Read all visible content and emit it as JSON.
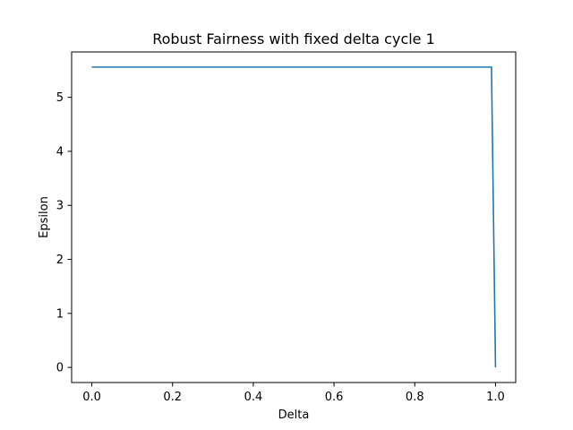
{
  "chart_data": {
    "type": "line",
    "title": "Robust Fairness with fixed delta cycle 1",
    "xlabel": "Delta",
    "ylabel": "Epsilon",
    "xlim": [
      -0.05,
      1.05
    ],
    "ylim": [
      -0.28,
      5.84
    ],
    "x_ticks": [
      0.0,
      0.2,
      0.4,
      0.6,
      0.8,
      1.0
    ],
    "x_tick_labels": [
      "0.0",
      "0.2",
      "0.4",
      "0.6",
      "0.8",
      "1.0"
    ],
    "y_ticks": [
      0,
      1,
      2,
      3,
      4,
      5
    ],
    "y_tick_labels": [
      "0",
      "1",
      "2",
      "3",
      "4",
      "5"
    ],
    "grid": false,
    "series": [
      {
        "color": "#1f77b4",
        "x": [
          0.0,
          0.99,
          1.0
        ],
        "y": [
          5.56,
          5.56,
          0.0
        ]
      }
    ]
  }
}
